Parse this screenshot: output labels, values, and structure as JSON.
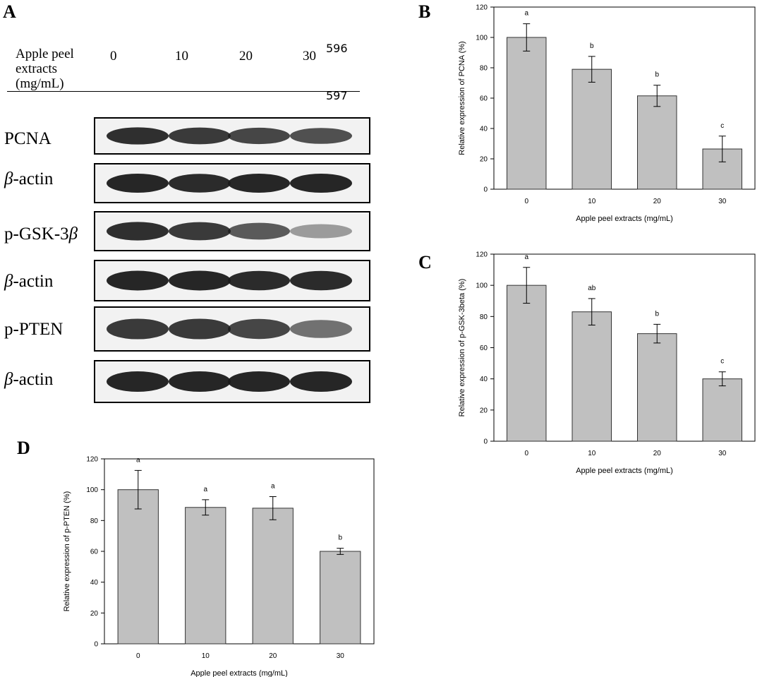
{
  "panelA": {
    "letter": "A",
    "header_label": [
      "Apple peel",
      "extracts",
      "(mg/mL)"
    ],
    "doses": [
      "0",
      "10",
      "20",
      "30"
    ],
    "line_numbers": [
      "596",
      "597"
    ],
    "blots": [
      {
        "label": "PCNA",
        "intensities": [
          0.9,
          0.85,
          0.8,
          0.75
        ]
      },
      {
        "label_prefix": "β",
        "label_suffix": "-actin",
        "intensities": [
          0.95,
          0.92,
          0.95,
          0.95
        ]
      },
      {
        "label_prefix": "p-GSK-3",
        "label_suffix": "β",
        "intensities": [
          0.9,
          0.85,
          0.7,
          0.4
        ]
      },
      {
        "label_prefix": "β",
        "label_suffix": "-actin",
        "intensities": [
          0.95,
          0.95,
          0.92,
          0.92
        ]
      },
      {
        "label": "p-PTEN",
        "intensities": [
          0.85,
          0.85,
          0.8,
          0.6
        ]
      },
      {
        "label_prefix": "β",
        "label_suffix": "-actin",
        "intensities": [
          0.95,
          0.95,
          0.95,
          0.95
        ]
      }
    ]
  },
  "chart_data": [
    {
      "panel": "B",
      "type": "bar",
      "categories": [
        "0",
        "10",
        "20",
        "30"
      ],
      "values": [
        100,
        79,
        61.5,
        26.5
      ],
      "errors": [
        9,
        8.5,
        7,
        8.5
      ],
      "letters": [
        "a",
        "b",
        "b",
        "c"
      ],
      "xlabel": "Apple peel extracts (mg/mL)",
      "ylabel": "Relative expression of PCNA (%)",
      "ylim": [
        0,
        120
      ],
      "yticks": [
        "0",
        "20",
        "40",
        "60",
        "80",
        "100",
        "120"
      ]
    },
    {
      "panel": "C",
      "type": "bar",
      "categories": [
        "0",
        "10",
        "20",
        "30"
      ],
      "values": [
        100,
        83,
        69,
        40
      ],
      "errors": [
        11.5,
        8.5,
        6,
        4.5
      ],
      "letters": [
        "a",
        "ab",
        "b",
        "c"
      ],
      "xlabel": "Apple peel extracts (mg/mL)",
      "ylabel": "Relative expression of p-GSK-3beta (%)",
      "ylim": [
        0,
        120
      ],
      "yticks": [
        "0",
        "20",
        "40",
        "60",
        "80",
        "100",
        "120"
      ]
    },
    {
      "panel": "D",
      "type": "bar",
      "categories": [
        "0",
        "10",
        "20",
        "30"
      ],
      "values": [
        100,
        88.5,
        88,
        60
      ],
      "errors": [
        12.5,
        5,
        7.5,
        2
      ],
      "letters": [
        "a",
        "a",
        "a",
        "b"
      ],
      "xlabel": "Apple peel extracts (mg/mL)",
      "ylabel": "Relative expression of p-PTEN (%)",
      "ylim": [
        0,
        120
      ],
      "yticks": [
        "0",
        "20",
        "40",
        "60",
        "80",
        "100",
        "120"
      ]
    }
  ],
  "colors": {
    "bar_fill": "#c0c0c0",
    "bar_stroke": "#333333",
    "band": "#1a1a1a"
  }
}
